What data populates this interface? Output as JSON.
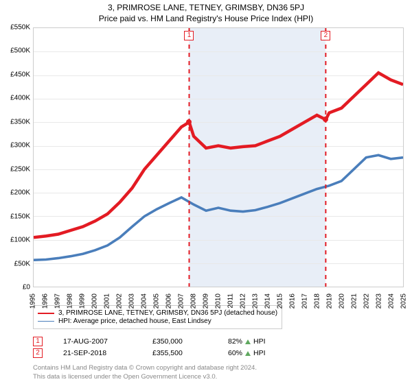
{
  "titles": {
    "line1": "3, PRIMROSE LANE, TETNEY, GRIMSBY, DN36 5PJ",
    "line2": "Price paid vs. HM Land Registry's House Price Index (HPI)"
  },
  "chart": {
    "type": "line",
    "background_color": "#ffffff",
    "grid_color": "#e8e8e8",
    "border_color": "#cccccc",
    "band_color": "#e8eef7",
    "x": {
      "min": 1995,
      "max": 2025,
      "ticks": [
        1995,
        1996,
        1997,
        1998,
        1999,
        2000,
        2001,
        2002,
        2003,
        2004,
        2005,
        2006,
        2007,
        2008,
        2009,
        2010,
        2011,
        2012,
        2013,
        2014,
        2015,
        2016,
        2017,
        2018,
        2019,
        2020,
        2021,
        2022,
        2023,
        2024,
        2025
      ]
    },
    "y": {
      "min": 0,
      "max": 550000,
      "ticks": [
        0,
        50000,
        100000,
        150000,
        200000,
        250000,
        300000,
        350000,
        400000,
        450000,
        500000,
        550000
      ],
      "tick_labels": [
        "£0",
        "£50K",
        "£100K",
        "£150K",
        "£200K",
        "£250K",
        "£300K",
        "£350K",
        "£400K",
        "£450K",
        "£500K",
        "£550K"
      ]
    },
    "band": {
      "from": 2007.63,
      "to": 2018.72
    },
    "series": [
      {
        "id": "price_paid",
        "label": "3, PRIMROSE LANE, TETNEY, GRIMSBY, DN36 5PJ (detached house)",
        "color": "#e31b23",
        "width": 1.5,
        "points": [
          [
            1995,
            105000
          ],
          [
            1996,
            108000
          ],
          [
            1997,
            112000
          ],
          [
            1998,
            120000
          ],
          [
            1999,
            128000
          ],
          [
            2000,
            140000
          ],
          [
            2001,
            155000
          ],
          [
            2002,
            180000
          ],
          [
            2003,
            210000
          ],
          [
            2004,
            250000
          ],
          [
            2005,
            280000
          ],
          [
            2006,
            310000
          ],
          [
            2007,
            340000
          ],
          [
            2007.63,
            350000
          ],
          [
            2008,
            320000
          ],
          [
            2009,
            295000
          ],
          [
            2010,
            300000
          ],
          [
            2011,
            295000
          ],
          [
            2012,
            298000
          ],
          [
            2013,
            300000
          ],
          [
            2014,
            310000
          ],
          [
            2015,
            320000
          ],
          [
            2016,
            335000
          ],
          [
            2017,
            350000
          ],
          [
            2018,
            365000
          ],
          [
            2018.72,
            355500
          ],
          [
            2019,
            370000
          ],
          [
            2020,
            380000
          ],
          [
            2021,
            405000
          ],
          [
            2022,
            430000
          ],
          [
            2023,
            455000
          ],
          [
            2024,
            440000
          ],
          [
            2025,
            430000
          ]
        ]
      },
      {
        "id": "hpi",
        "label": "HPI: Average price, detached house, East Lindsey",
        "color": "#4a7ebb",
        "width": 1.2,
        "points": [
          [
            1995,
            57000
          ],
          [
            1996,
            58000
          ],
          [
            1997,
            61000
          ],
          [
            1998,
            65000
          ],
          [
            1999,
            70000
          ],
          [
            2000,
            78000
          ],
          [
            2001,
            88000
          ],
          [
            2002,
            105000
          ],
          [
            2003,
            128000
          ],
          [
            2004,
            150000
          ],
          [
            2005,
            165000
          ],
          [
            2006,
            178000
          ],
          [
            2007,
            190000
          ],
          [
            2008,
            175000
          ],
          [
            2009,
            162000
          ],
          [
            2010,
            168000
          ],
          [
            2011,
            162000
          ],
          [
            2012,
            160000
          ],
          [
            2013,
            163000
          ],
          [
            2014,
            170000
          ],
          [
            2015,
            178000
          ],
          [
            2016,
            188000
          ],
          [
            2017,
            198000
          ],
          [
            2018,
            208000
          ],
          [
            2019,
            215000
          ],
          [
            2020,
            225000
          ],
          [
            2021,
            250000
          ],
          [
            2022,
            275000
          ],
          [
            2023,
            280000
          ],
          [
            2024,
            272000
          ],
          [
            2025,
            275000
          ]
        ]
      }
    ],
    "sale_markers": [
      {
        "idx": "1",
        "x": 2007.63,
        "y": 350000,
        "color": "#e31b23"
      },
      {
        "idx": "2",
        "x": 2018.72,
        "y": 355500,
        "color": "#e31b23"
      }
    ],
    "label_fontsize": 10
  },
  "sales": [
    {
      "idx": "1",
      "date": "17-AUG-2007",
      "price": "£350,000",
      "pct": "82%",
      "arrow_color": "#5fa85f",
      "suffix": "HPI",
      "idx_color": "#e31b23"
    },
    {
      "idx": "2",
      "date": "21-SEP-2018",
      "price": "£355,500",
      "pct": "60%",
      "arrow_color": "#5fa85f",
      "suffix": "HPI",
      "idx_color": "#e31b23"
    }
  ],
  "footer": {
    "line1": "Contains HM Land Registry data © Crown copyright and database right 2024.",
    "line2": "This data is licensed under the Open Government Licence v3.0."
  }
}
